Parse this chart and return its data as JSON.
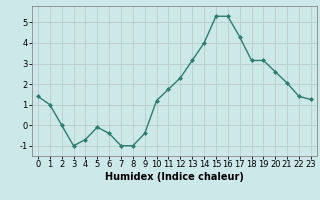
{
  "x": [
    0,
    1,
    2,
    3,
    4,
    5,
    6,
    7,
    8,
    9,
    10,
    11,
    12,
    13,
    14,
    15,
    16,
    17,
    18,
    19,
    20,
    21,
    22,
    23
  ],
  "y": [
    1.4,
    1.0,
    0.0,
    -1.0,
    -0.7,
    -0.1,
    -0.4,
    -1.0,
    -1.0,
    -0.4,
    1.2,
    1.75,
    2.3,
    3.15,
    4.0,
    5.3,
    5.3,
    4.3,
    3.15,
    3.15,
    2.6,
    2.05,
    1.4,
    1.25
  ],
  "line_color": "#2e7d6e",
  "marker": "D",
  "marker_size": 2.0,
  "linewidth": 1.0,
  "bg_color": "#cce8e8",
  "grid_color": "#bbcccc",
  "xlabel": "Humidex (Indice chaleur)",
  "xlabel_fontsize": 7,
  "tick_fontsize": 6,
  "xlim": [
    -0.5,
    23.5
  ],
  "ylim": [
    -1.5,
    5.8
  ],
  "yticks": [
    -1,
    0,
    1,
    2,
    3,
    4,
    5
  ],
  "xticks": [
    0,
    1,
    2,
    3,
    4,
    5,
    6,
    7,
    8,
    9,
    10,
    11,
    12,
    13,
    14,
    15,
    16,
    17,
    18,
    19,
    20,
    21,
    22,
    23
  ]
}
